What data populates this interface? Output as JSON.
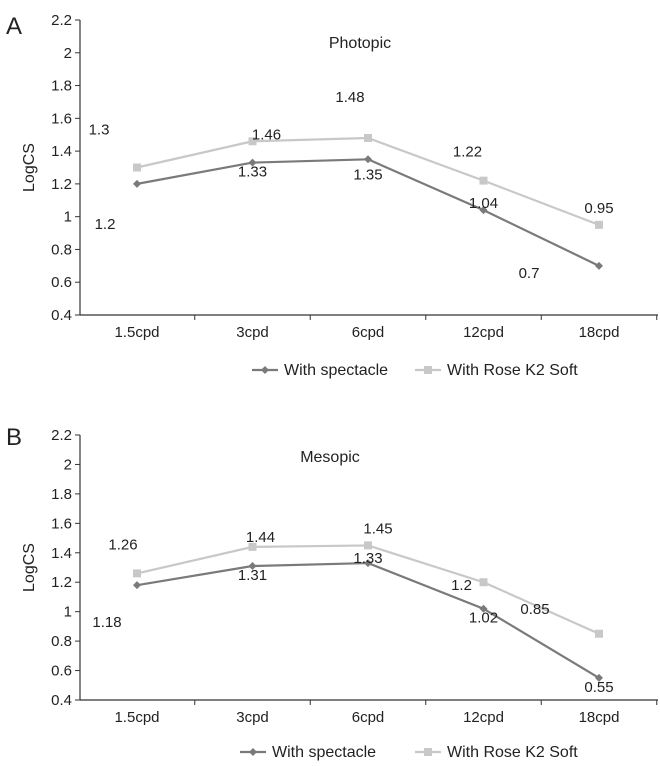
{
  "colors": {
    "spectacle": "#7a7a7a",
    "rose_k2": "#c8c8c8",
    "axis": "#333333",
    "text": "#222222"
  },
  "chart_data": [
    {
      "panel_letter": "A",
      "type": "line",
      "title": "Photopic",
      "xlabel": "",
      "ylabel": "LogCS",
      "categories": [
        "1.5cpd",
        "3cpd",
        "6cpd",
        "12cpd",
        "18cpd"
      ],
      "ylim": [
        0.4,
        2.2
      ],
      "yticks": [
        "0.4",
        "0.6",
        "0.8",
        "1",
        "1.2",
        "1.4",
        "1.6",
        "1.8",
        "2",
        "2.2"
      ],
      "grid": false,
      "legend_placement": "bottom",
      "series": [
        {
          "name": "With spectacle",
          "values": [
            1.2,
            1.33,
            1.35,
            1.04,
            0.7
          ],
          "labels": [
            "1.2",
            "1.33",
            "1.35",
            "1.04",
            "0.7"
          ]
        },
        {
          "name": "With Rose K2 Soft",
          "values": [
            1.3,
            1.46,
            1.48,
            1.22,
            0.95
          ],
          "labels": [
            "1.3",
            "1.46",
            "1.48",
            "1.22",
            "0.95"
          ]
        }
      ]
    },
    {
      "panel_letter": "B",
      "type": "line",
      "title": "Mesopic",
      "xlabel": "",
      "ylabel": "LogCS",
      "categories": [
        "1.5cpd",
        "3cpd",
        "6cpd",
        "12cpd",
        "18cpd"
      ],
      "ylim": [
        0.4,
        2.2
      ],
      "yticks": [
        "0.4",
        "0.6",
        "0.8",
        "1",
        "1.2",
        "1.4",
        "1.6",
        "1.8",
        "2",
        "2.2"
      ],
      "grid": false,
      "legend_placement": "bottom",
      "series": [
        {
          "name": "With spectacle",
          "values": [
            1.18,
            1.31,
            1.33,
            1.02,
            0.55
          ],
          "labels": [
            "1.18",
            "1.31",
            "1.33",
            "1.02",
            "0.55"
          ]
        },
        {
          "name": "With Rose K2 Soft",
          "values": [
            1.26,
            1.44,
            1.45,
            1.2,
            0.85
          ],
          "labels": [
            "1.26",
            "1.44",
            "1.45",
            "1.2",
            "0.85"
          ]
        }
      ]
    }
  ]
}
